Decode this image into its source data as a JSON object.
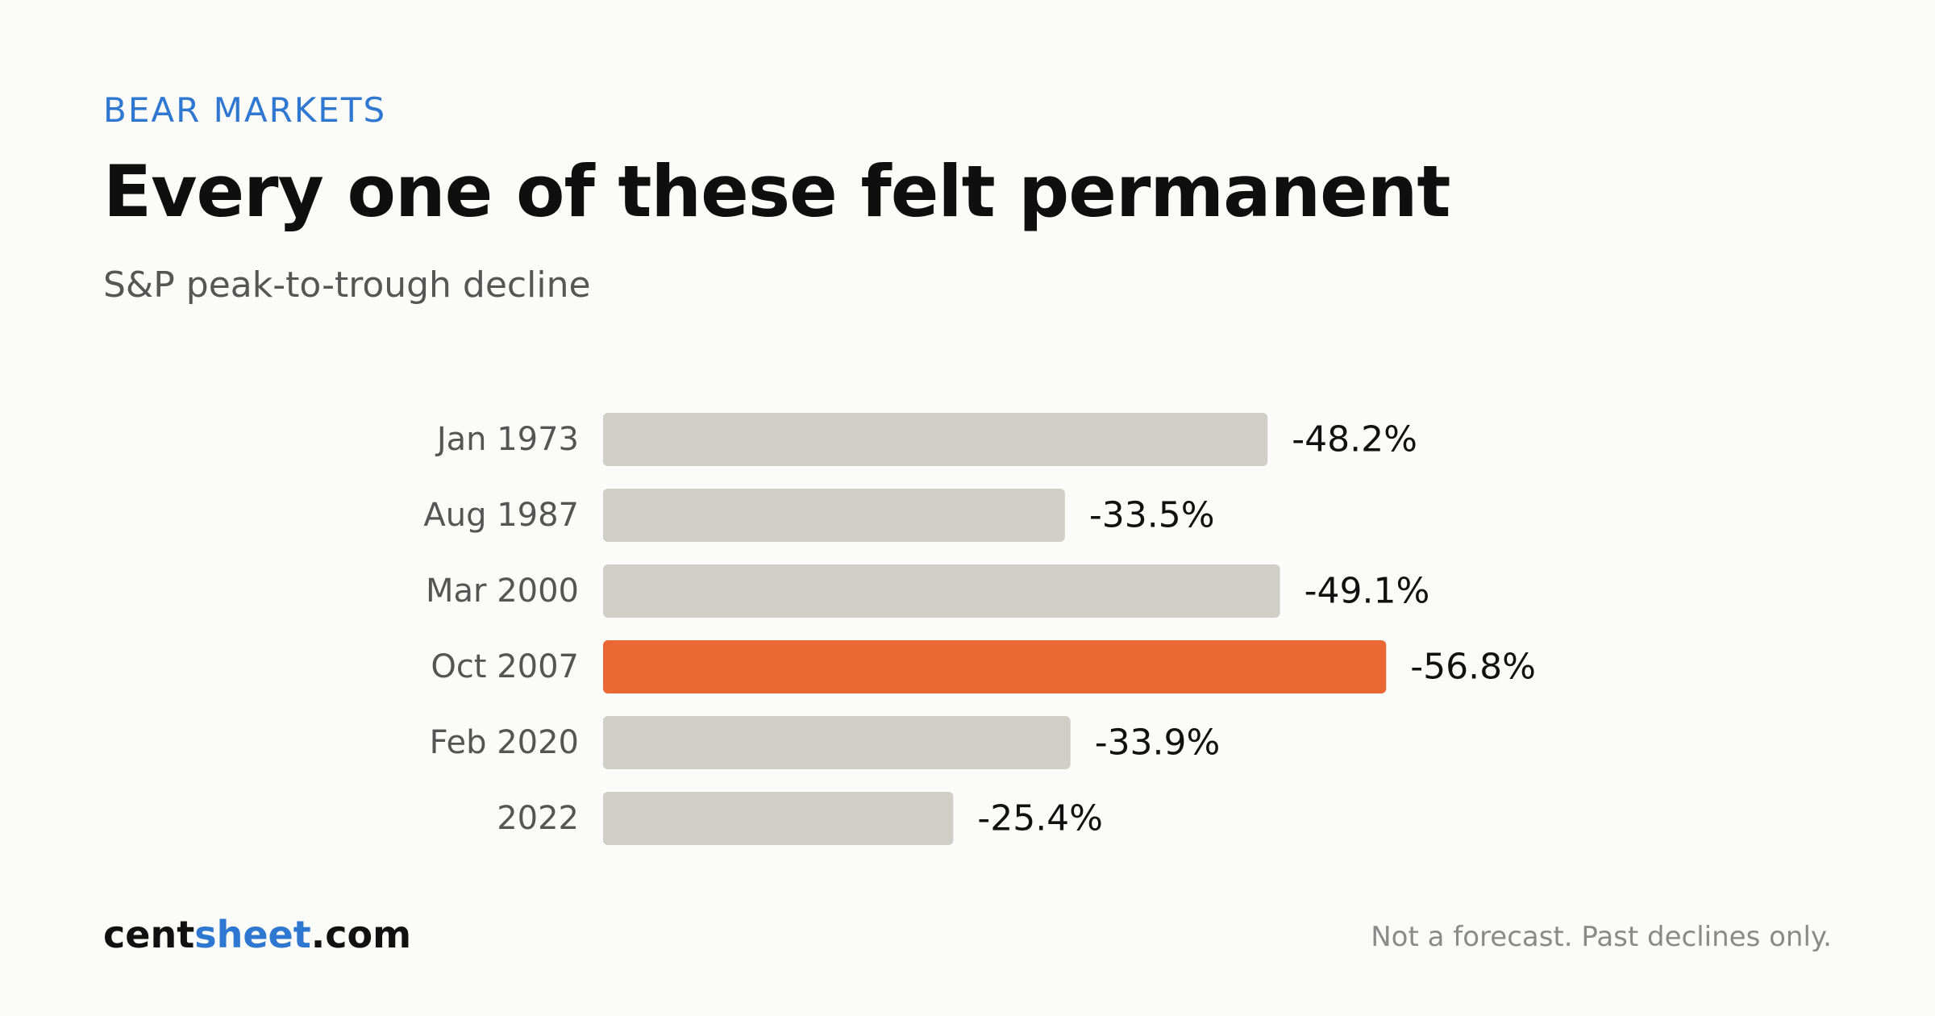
{
  "header": {
    "eyebrow": "BEAR MARKETS",
    "title": "Every one of these felt permanent",
    "subtitle": "S&P peak-to-trough decline"
  },
  "footer": {
    "brand_prefix": "cent",
    "brand_accent": "sheet",
    "brand_suffix": ".com",
    "note": "Not a forecast. Past declines only."
  },
  "colors": {
    "bar_default": "#cfcfc8",
    "bar_highlight": "#e96834",
    "accent": "#2f78d2",
    "label_text": "#555555",
    "value_text": "#111111"
  },
  "chart_data": {
    "type": "bar",
    "orientation": "horizontal",
    "categories": [
      "Jan 1973",
      "Aug 1987",
      "Mar 2000",
      "Oct 2007",
      "Feb 2020",
      "2022"
    ],
    "values": [
      -48.2,
      -33.5,
      -49.1,
      -56.8,
      -33.9,
      -25.4
    ],
    "value_labels": [
      "-48.2%",
      "-33.5%",
      "-49.1%",
      "-56.8%",
      "-33.9%",
      "-25.4%"
    ],
    "highlight": "Oct 2007",
    "title": "",
    "xlabel": "",
    "ylabel": "",
    "grid": false,
    "legend": "none"
  }
}
